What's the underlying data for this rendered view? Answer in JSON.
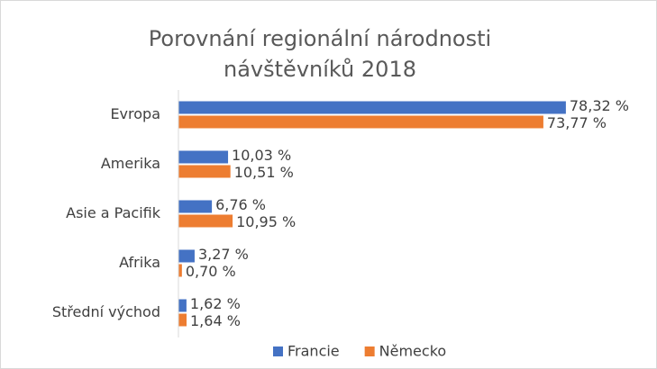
{
  "chart_data": {
    "type": "hbar",
    "title": "Porovnání regionální národnosti návštěvníků 2018",
    "categories": [
      "Evropa",
      "Amerika",
      "Asie a Pacifik",
      "Afrika",
      "Střední východ"
    ],
    "series": [
      {
        "name": "Francie",
        "color": "#4472c4",
        "values": [
          78.32,
          10.03,
          6.76,
          3.27,
          1.62
        ],
        "value_labels": [
          "78,32 %",
          "10,03 %",
          "6,76 %",
          "3,27 %",
          "1,62 %"
        ]
      },
      {
        "name": "Německo",
        "color": "#ed7d31",
        "values": [
          73.77,
          10.51,
          10.95,
          0.7,
          1.64
        ],
        "value_labels": [
          "73,77 %",
          "10,51 %",
          "10,95 %",
          "0,70 %",
          "1,64 %"
        ]
      }
    ],
    "xlim": [
      0,
      90
    ],
    "legend": "bottom"
  }
}
